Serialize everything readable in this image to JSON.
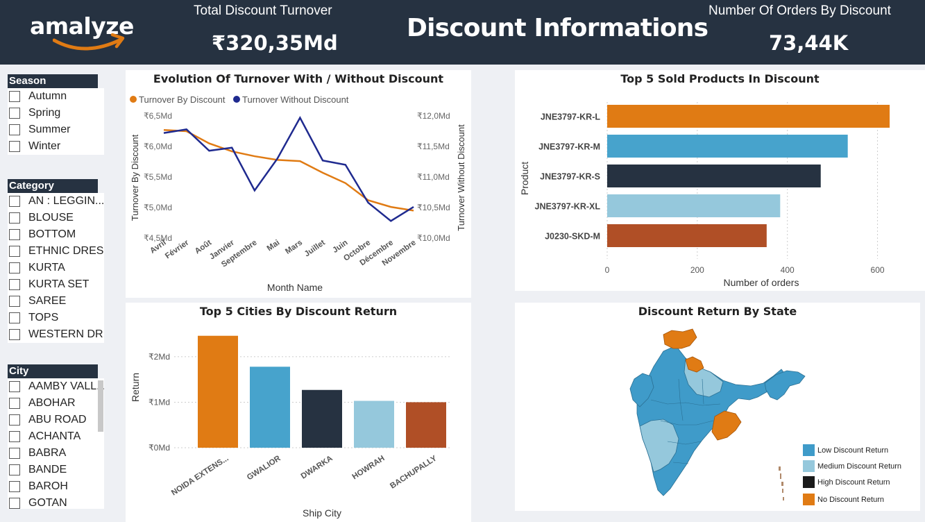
{
  "header": {
    "logo": "amalyze",
    "title": "Discount Informations",
    "kpi_turnover_label": "Total Discount Turnover",
    "kpi_turnover_value": "₹320,35Md",
    "kpi_orders_label": "Number Of Orders By Discount",
    "kpi_orders_value": "73,44K"
  },
  "slicers": {
    "season": {
      "title": "Season",
      "items": [
        "Autumn",
        "Spring",
        "Summer",
        "Winter"
      ]
    },
    "category": {
      "title": "Category",
      "items": [
        "AN : LEGGIN...",
        "BLOUSE",
        "BOTTOM",
        "ETHNIC DRESS",
        "KURTA",
        "KURTA SET",
        "SAREE",
        "TOPS",
        "WESTERN DR..."
      ]
    },
    "city": {
      "title": "City",
      "items": [
        "AAMBY VALL...",
        "ABOHAR",
        "ABU ROAD",
        "ACHANTA",
        "BABRA",
        "BANDE",
        "BAROH",
        "GOTAN"
      ]
    }
  },
  "colors": {
    "orange": "#e07b14",
    "blue": "#47a3cc",
    "dark": "#263241",
    "light": "#95c8dc",
    "rust": "#b04f26",
    "navy": "#1f2a8f"
  },
  "chart_data": [
    {
      "type": "line",
      "title": "Evolution Of Turnover With / Without Discount",
      "xlabel": "Month Name",
      "ylabel_left": "Turnover By Discount",
      "ylabel_right": "Turnover Without Discount",
      "categories": [
        "Avril",
        "Février",
        "Août",
        "Janvier",
        "Septembre",
        "Mai",
        "Mars",
        "Juillet",
        "Juin",
        "Octobre",
        "Décembre",
        "Novembre"
      ],
      "left_ticks": [
        "₹6,5Md",
        "₹6,0Md",
        "₹5,5Md",
        "₹5,0Md",
        "₹4,5Md"
      ],
      "right_ticks": [
        "₹12,0Md",
        "₹11,5Md",
        "₹11,0Md",
        "₹10,5Md",
        "₹10,0Md"
      ],
      "ylim_left": [
        4.5,
        6.5
      ],
      "ylim_right": [
        10.0,
        12.0
      ],
      "series": [
        {
          "name": "Turnover By Discount",
          "axis": "left",
          "color": "#e07b14",
          "values": [
            6.27,
            6.25,
            6.05,
            5.92,
            5.84,
            5.78,
            5.76,
            5.57,
            5.4,
            5.12,
            5.01,
            4.95
          ]
        },
        {
          "name": "Turnover Without Discount",
          "axis": "right",
          "color": "#1f2a8f",
          "values": [
            11.72,
            11.78,
            11.43,
            11.48,
            10.78,
            11.3,
            11.97,
            11.27,
            11.2,
            10.58,
            10.28,
            10.51
          ]
        }
      ]
    },
    {
      "type": "bar",
      "orientation": "horizontal",
      "title": "Top 5 Sold Products In Discount",
      "xlabel": "Number of orders",
      "ylabel": "Product",
      "categories": [
        "JNE3797-KR-L",
        "JNE3797-KR-M",
        "JNE3797-KR-S",
        "JNE3797-KR-XL",
        "J0230-SKD-M"
      ],
      "values": [
        627,
        534,
        474,
        384,
        354
      ],
      "colors": [
        "#e07b14",
        "#47a3cc",
        "#263241",
        "#95c8dc",
        "#b04f26"
      ],
      "xticks": [
        "0",
        "200",
        "400",
        "600"
      ],
      "xlim": [
        0,
        650
      ]
    },
    {
      "type": "bar",
      "title": "Top 5 Cities By Discount Return",
      "xlabel": "Ship City",
      "ylabel": "Return",
      "categories": [
        "NOIDA EXTENS...",
        "GWALIOR",
        "DWARKA",
        "HOWRAH",
        "BACHUPALLY"
      ],
      "values": [
        2.46,
        1.78,
        1.27,
        1.03,
        1.0
      ],
      "colors": [
        "#e07b14",
        "#47a3cc",
        "#263241",
        "#95c8dc",
        "#b04f26"
      ],
      "yticks": [
        "₹2Md",
        "₹1Md",
        "₹0Md"
      ],
      "ylim": [
        0,
        2.7
      ]
    },
    {
      "type": "map",
      "title": "Discount Return By State",
      "legend": [
        {
          "label": "Low Discount Return",
          "color": "#47a3cc"
        },
        {
          "label": "Medium Discount Return",
          "color": "#95c8dc"
        },
        {
          "label": "High Discount Return",
          "color": "#1a1a1a"
        },
        {
          "label": "No Discount Return",
          "color": "#e07b14"
        }
      ]
    }
  ]
}
